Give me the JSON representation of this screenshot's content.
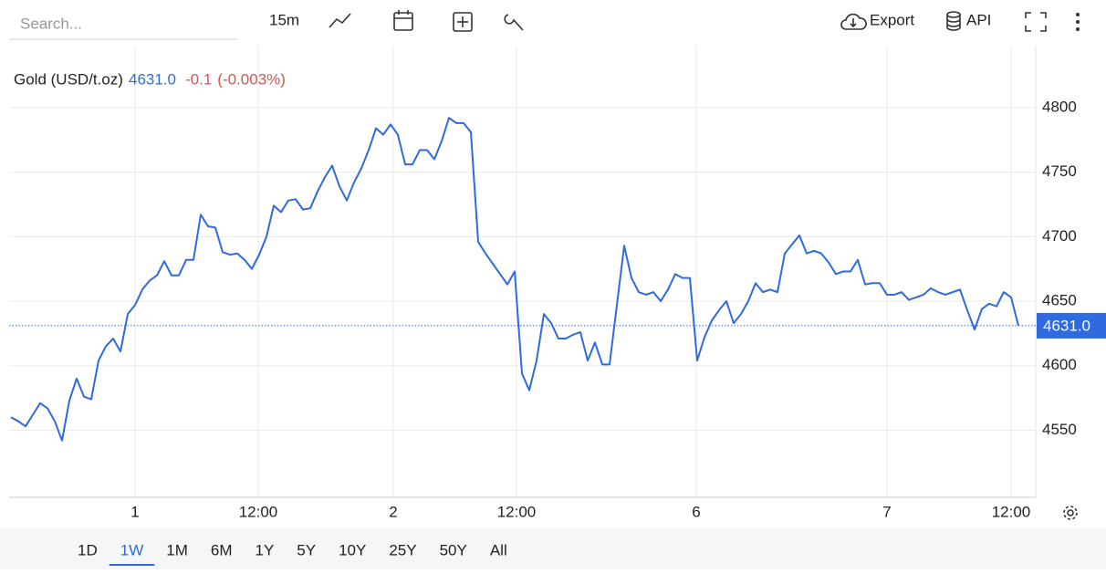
{
  "toolbar": {
    "search_placeholder": "Search...",
    "interval": "15m",
    "export": "Export",
    "api": "API"
  },
  "chart_data": {
    "type": "line",
    "title": "Gold (USD/t.oz)",
    "color": "#2f6ae0",
    "last_price": {
      "value": 4631,
      "label": "4631.0"
    },
    "change": "-0.1",
    "change_pct": "(-0.003%)",
    "values": [
      4560,
      4557,
      4553,
      4562,
      4571,
      4567,
      4557,
      4542,
      4573,
      4590,
      4576,
      4574,
      4604,
      4615,
      4621,
      4611,
      4640,
      4647,
      4659,
      4666,
      4670,
      4681,
      4670,
      4670,
      4682,
      4682,
      4717,
      4708,
      4707,
      4688,
      4686,
      4687,
      4682,
      4675,
      4686,
      4700,
      4724,
      4719,
      4728,
      4729,
      4721,
      4722,
      4735,
      4746,
      4755,
      4739,
      4728,
      4742,
      4753,
      4767,
      4784,
      4779,
      4787,
      4779,
      4756,
      4756,
      4767,
      4767,
      4760,
      4774,
      4792,
      4788,
      4788,
      4781,
      4696,
      4687,
      4679,
      4671,
      4663,
      4673,
      4594,
      4581,
      4604,
      4640,
      4633,
      4621,
      4621,
      4624,
      4626,
      4604,
      4618,
      4601,
      4601,
      4647,
      4693,
      4668,
      4657,
      4655,
      4657,
      4650,
      4659,
      4671,
      4668,
      4668,
      4604,
      4622,
      4635,
      4643,
      4650,
      4633,
      4640,
      4650,
      4664,
      4657,
      4659,
      4657,
      4687,
      4694,
      4701,
      4687,
      4689,
      4687,
      4680,
      4671,
      4673,
      4673,
      4682,
      4663,
      4664,
      4664,
      4655,
      4655,
      4657,
      4651,
      4653,
      4655,
      4660,
      4657,
      4655,
      4657,
      4659,
      4643,
      4628,
      4644,
      4648,
      4646,
      4657,
      4653,
      4631
    ],
    "xlim": [
      -0.25,
      140.375
    ],
    "xticks": [
      {
        "value": 17,
        "label": "1"
      },
      {
        "value": 33.875,
        "label": "12:00"
      },
      {
        "value": 52.375,
        "label": "2"
      },
      {
        "value": 69.25,
        "label": "12:00"
      },
      {
        "value": 93.875,
        "label": "6"
      },
      {
        "value": 120,
        "label": "7"
      },
      {
        "value": 137,
        "label": "12:00"
      }
    ],
    "ylim": [
      4498,
      4848
    ],
    "yticks": [
      4550,
      4600,
      4650,
      4700,
      4750,
      4800
    ],
    "grid": true
  },
  "range_buttons": {
    "items": [
      "1D",
      "1W",
      "1M",
      "6M",
      "1Y",
      "5Y",
      "10Y",
      "25Y",
      "50Y",
      "All"
    ],
    "active": 1
  }
}
